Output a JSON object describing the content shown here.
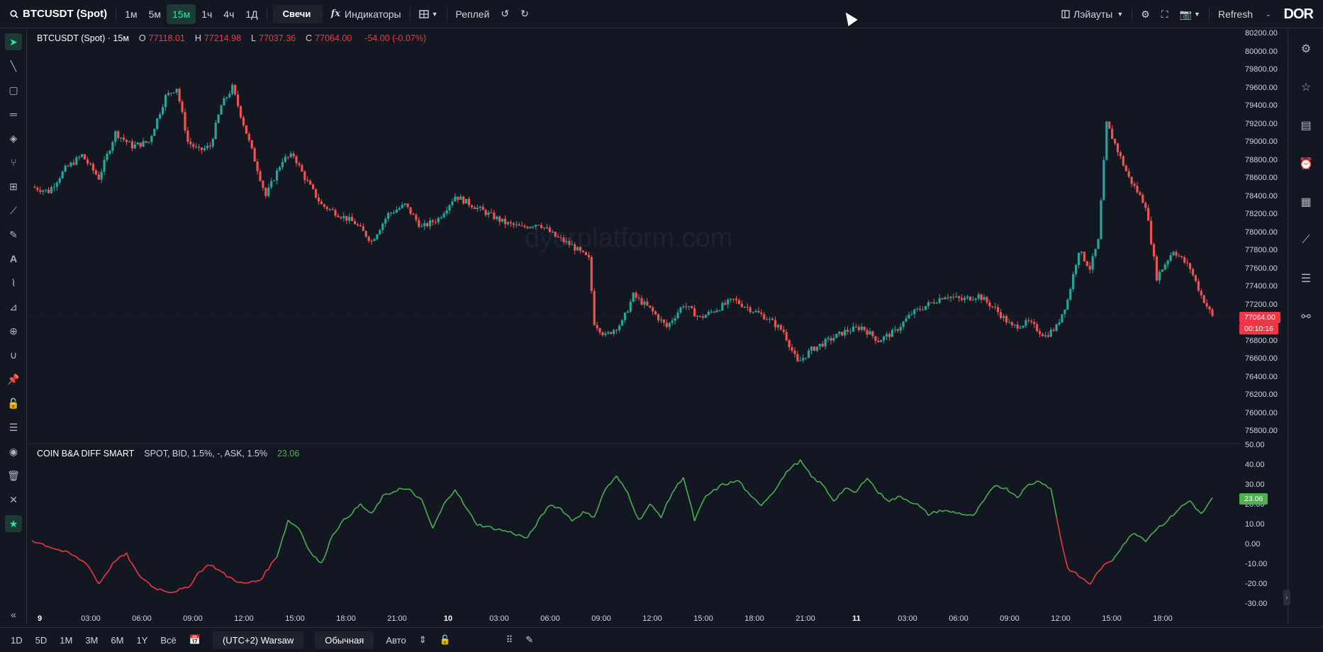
{
  "toolbar": {
    "symbol": "BTCUSDT (Spot)",
    "intervals": [
      "1м",
      "5м",
      "15м",
      "1ч",
      "4ч",
      "1Д"
    ],
    "active_interval": "15м",
    "chart_type": "Свечи",
    "indicators": "Индикаторы",
    "replay": "Реплей",
    "layouts": "Лэйауты",
    "refresh": "Refresh",
    "logo": "DOR"
  },
  "legend": {
    "title": "BTCUSDT (Spot) · 15м",
    "o_label": "O",
    "o": "77118.01",
    "h_label": "H",
    "h": "77214.98",
    "l_label": "L",
    "l": "77037.36",
    "c_label": "C",
    "c": "77064.00",
    "change": "-54.00 (-0.07%)"
  },
  "indicator": {
    "name": "COIN B&A DIFF SMART",
    "params": "SPOT, BID, 1.5%, -, ASK, 1.5%",
    "value": "23.06"
  },
  "watermark": "dyorplatform.com",
  "price_axis": [
    "80200.00",
    "80000.00",
    "79800.00",
    "79600.00",
    "79400.00",
    "79200.00",
    "79000.00",
    "78800.00",
    "78600.00",
    "78400.00",
    "78200.00",
    "78000.00",
    "77800.00",
    "77600.00",
    "77400.00",
    "77200.00",
    "76800.00",
    "76600.00",
    "76400.00",
    "76200.00",
    "76000.00",
    "75800.00"
  ],
  "price_tag": {
    "price": "77064.00",
    "countdown": "00:10:16"
  },
  "indicator_axis": [
    "50.00",
    "40.00",
    "30.00",
    "20.00",
    "10.00",
    "0.00",
    "-10.00",
    "-20.00",
    "-30.00"
  ],
  "indicator_tag": "23.06",
  "time_axis": [
    {
      "label": "9",
      "bold": true
    },
    {
      "label": "03:00"
    },
    {
      "label": "06:00"
    },
    {
      "label": "09:00"
    },
    {
      "label": "12:00"
    },
    {
      "label": "15:00"
    },
    {
      "label": "18:00"
    },
    {
      "label": "21:00"
    },
    {
      "label": "10",
      "bold": true
    },
    {
      "label": "03:00"
    },
    {
      "label": "06:00"
    },
    {
      "label": "09:00"
    },
    {
      "label": "12:00"
    },
    {
      "label": "15:00"
    },
    {
      "label": "18:00"
    },
    {
      "label": "21:00"
    },
    {
      "label": "11",
      "bold": true
    },
    {
      "label": "03:00"
    },
    {
      "label": "06:00"
    },
    {
      "label": "09:00"
    },
    {
      "label": "12:00"
    },
    {
      "label": "15:00"
    },
    {
      "label": "18:00"
    }
  ],
  "bottom": {
    "ranges": [
      "1D",
      "5D",
      "1M",
      "3M",
      "6M",
      "1Y",
      "Всё"
    ],
    "timezone": "(UTC+2) Warsaw",
    "scale_mode": "Обычная",
    "auto": "Авто"
  },
  "colors": {
    "up": "#26a69a",
    "down": "#ef5350",
    "ind_up": "#4caf50",
    "ind_down": "#f23645",
    "bg": "#131722"
  },
  "chart_data": {
    "type": "line",
    "title": "",
    "price_range": [
      75800,
      80200
    ],
    "indicator_range": [
      -30,
      50
    ],
    "close_keypoints": [
      [
        0,
        78500
      ],
      [
        6,
        78450
      ],
      [
        12,
        78700
      ],
      [
        18,
        78850
      ],
      [
        24,
        78600
      ],
      [
        30,
        79100
      ],
      [
        36,
        78950
      ],
      [
        42,
        79000
      ],
      [
        48,
        79500
      ],
      [
        52,
        79600
      ],
      [
        56,
        79000
      ],
      [
        60,
        78900
      ],
      [
        64,
        78950
      ],
      [
        68,
        79400
      ],
      [
        72,
        79600
      ],
      [
        76,
        79200
      ],
      [
        80,
        78800
      ],
      [
        84,
        78400
      ],
      [
        90,
        78800
      ],
      [
        94,
        78850
      ],
      [
        98,
        78600
      ],
      [
        104,
        78300
      ],
      [
        110,
        78200
      ],
      [
        116,
        78100
      ],
      [
        122,
        77900
      ],
      [
        128,
        78200
      ],
      [
        134,
        78300
      ],
      [
        140,
        78050
      ],
      [
        146,
        78150
      ],
      [
        152,
        78400
      ],
      [
        158,
        78300
      ],
      [
        164,
        78200
      ],
      [
        170,
        78100
      ],
      [
        176,
        78050
      ],
      [
        182,
        78100
      ],
      [
        188,
        77950
      ],
      [
        194,
        77850
      ],
      [
        200,
        77700
      ],
      [
        202,
        77000
      ],
      [
        206,
        76850
      ],
      [
        212,
        77000
      ],
      [
        216,
        77300
      ],
      [
        222,
        77150
      ],
      [
        228,
        76950
      ],
      [
        234,
        77200
      ],
      [
        240,
        77050
      ],
      [
        246,
        77150
      ],
      [
        252,
        77250
      ],
      [
        258,
        77150
      ],
      [
        264,
        77050
      ],
      [
        270,
        76900
      ],
      [
        275,
        76550
      ],
      [
        280,
        76700
      ],
      [
        286,
        76800
      ],
      [
        292,
        76900
      ],
      [
        298,
        76950
      ],
      [
        304,
        76800
      ],
      [
        310,
        76900
      ],
      [
        316,
        77100
      ],
      [
        322,
        77200
      ],
      [
        328,
        77300
      ],
      [
        334,
        77250
      ],
      [
        340,
        77300
      ],
      [
        346,
        77150
      ],
      [
        352,
        76950
      ],
      [
        358,
        77000
      ],
      [
        364,
        76850
      ],
      [
        368,
        76950
      ],
      [
        372,
        77250
      ],
      [
        376,
        77800
      ],
      [
        380,
        77600
      ],
      [
        383,
        77900
      ],
      [
        386,
        79200
      ],
      [
        390,
        78900
      ],
      [
        394,
        78600
      ],
      [
        400,
        78300
      ],
      [
        404,
        77500
      ],
      [
        410,
        77800
      ],
      [
        416,
        77600
      ],
      [
        420,
        77300
      ],
      [
        424,
        77064
      ]
    ],
    "indicator_keypoints": [
      [
        0,
        2
      ],
      [
        8,
        -2
      ],
      [
        14,
        -5
      ],
      [
        20,
        -10
      ],
      [
        24,
        -20
      ],
      [
        30,
        -8
      ],
      [
        34,
        -5
      ],
      [
        38,
        -15
      ],
      [
        44,
        -22
      ],
      [
        50,
        -24
      ],
      [
        56,
        -22
      ],
      [
        60,
        -14
      ],
      [
        64,
        -10
      ],
      [
        70,
        -16
      ],
      [
        76,
        -20
      ],
      [
        82,
        -18
      ],
      [
        88,
        -6
      ],
      [
        92,
        12
      ],
      [
        96,
        8
      ],
      [
        100,
        -4
      ],
      [
        104,
        -10
      ],
      [
        108,
        5
      ],
      [
        112,
        12
      ],
      [
        118,
        20
      ],
      [
        122,
        15
      ],
      [
        126,
        24
      ],
      [
        132,
        28
      ],
      [
        136,
        27
      ],
      [
        140,
        22
      ],
      [
        144,
        8
      ],
      [
        148,
        20
      ],
      [
        152,
        28
      ],
      [
        156,
        18
      ],
      [
        160,
        10
      ],
      [
        166,
        8
      ],
      [
        172,
        6
      ],
      [
        178,
        3
      ],
      [
        182,
        12
      ],
      [
        186,
        20
      ],
      [
        190,
        18
      ],
      [
        194,
        12
      ],
      [
        198,
        16
      ],
      [
        202,
        14
      ],
      [
        206,
        28
      ],
      [
        210,
        34
      ],
      [
        214,
        26
      ],
      [
        218,
        12
      ],
      [
        222,
        20
      ],
      [
        226,
        14
      ],
      [
        230,
        26
      ],
      [
        234,
        34
      ],
      [
        238,
        12
      ],
      [
        242,
        24
      ],
      [
        248,
        30
      ],
      [
        254,
        32
      ],
      [
        258,
        24
      ],
      [
        262,
        20
      ],
      [
        266,
        26
      ],
      [
        272,
        38
      ],
      [
        276,
        42
      ],
      [
        280,
        34
      ],
      [
        284,
        30
      ],
      [
        288,
        22
      ],
      [
        292,
        28
      ],
      [
        296,
        26
      ],
      [
        300,
        34
      ],
      [
        304,
        26
      ],
      [
        308,
        22
      ],
      [
        312,
        24
      ],
      [
        318,
        20
      ],
      [
        322,
        15
      ],
      [
        326,
        17
      ],
      [
        332,
        16
      ],
      [
        338,
        14
      ],
      [
        342,
        22
      ],
      [
        346,
        30
      ],
      [
        350,
        28
      ],
      [
        354,
        24
      ],
      [
        358,
        30
      ],
      [
        362,
        32
      ],
      [
        366,
        28
      ],
      [
        368,
        14
      ],
      [
        370,
        0
      ],
      [
        372,
        -12
      ],
      [
        376,
        -16
      ],
      [
        380,
        -20
      ],
      [
        384,
        -12
      ],
      [
        388,
        -8
      ],
      [
        392,
        0
      ],
      [
        396,
        6
      ],
      [
        400,
        2
      ],
      [
        404,
        8
      ],
      [
        408,
        12
      ],
      [
        412,
        18
      ],
      [
        416,
        22
      ],
      [
        420,
        15
      ],
      [
        424,
        23.06
      ]
    ]
  }
}
